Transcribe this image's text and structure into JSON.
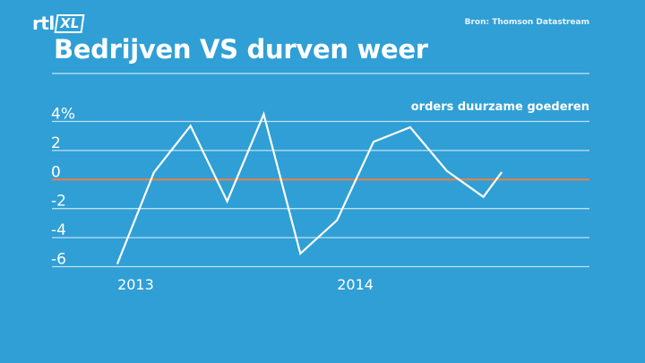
{
  "branding": {
    "logo_rtl": "rtl",
    "logo_xl": "XL",
    "source": "Bron: Thomson Datastream"
  },
  "title": "Bedrijven VS durven weer",
  "colors": {
    "background": "#2f9fd6",
    "line": "#ffffff",
    "zero_line": "#e8804a",
    "grid": "#bfe1f3"
  },
  "chart_data": {
    "type": "line",
    "title": "Bedrijven VS durven weer",
    "series": [
      {
        "name": "orders duurzame goederen",
        "x": [
          "2013-01",
          "2013-02",
          "2013-03",
          "2013-04",
          "2013-05",
          "2013-06",
          "2013-07",
          "2013-08",
          "2013-09",
          "2013-10",
          "2013-11",
          "2013-12",
          "2014-01",
          "2014-02",
          "2014-03",
          "2014-04",
          "2014-05",
          "2014-06",
          "2014-07",
          "2014-08",
          "2014-09",
          "2014-10"
        ],
        "values": [
          -5.8,
          null,
          0.5,
          null,
          3.7,
          null,
          -1.5,
          null,
          4.5,
          null,
          -5.1,
          null,
          -2.8,
          null,
          2.6,
          null,
          3.6,
          null,
          0.6,
          null,
          -1.2,
          0.5
        ]
      }
    ],
    "yticks": [
      "4%",
      "2",
      "0",
      "-2",
      "-4",
      "-6"
    ],
    "ytick_values": [
      4,
      2,
      0,
      -2,
      -4,
      -6
    ],
    "xticks": [
      "2013",
      "2014"
    ],
    "xtick_values": [
      "2013-02",
      "2014-02"
    ],
    "ylim": [
      -6.7,
      4.8
    ],
    "xlabel": "",
    "ylabel": "",
    "grid": true,
    "zero_line": true,
    "legend": "top-right"
  }
}
